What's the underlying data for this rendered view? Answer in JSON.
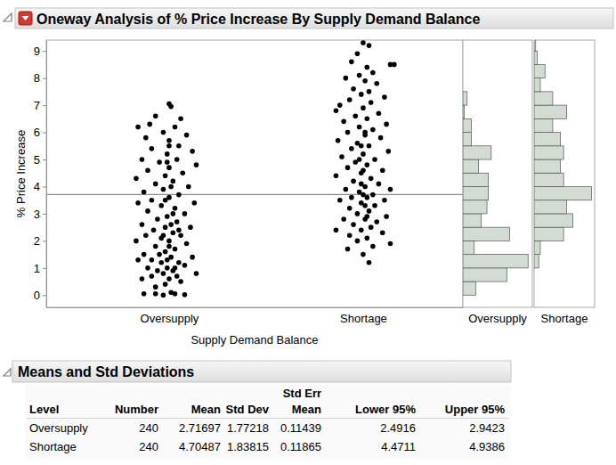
{
  "chart_data": [
    {
      "type": "scatter",
      "title": "Oneway Analysis of % Price Increase By Supply Demand Balance",
      "xlabel": "Supply Demand Balance",
      "ylabel": "% Price Increase",
      "xlim": [
        0.367,
        2.514
      ],
      "xticks": [
        {
          "value": 1,
          "label": "Oversupply"
        },
        {
          "value": 2,
          "label": "Shortage"
        }
      ],
      "ylim": [
        -0.45,
        9.4
      ],
      "yticks": [
        0,
        1,
        2,
        3,
        4,
        5,
        6,
        7,
        8,
        9
      ],
      "mean_line": 3.71,
      "series": [
        {
          "color": "#000000",
          "marker": "circle",
          "x": [
            1.0,
            1.01,
            0.93,
            1.06,
            0.84,
            0.9,
            1.03,
            0.97,
            1.09,
            0.88,
            1.0,
            1.05,
            0.91,
            1.12,
            0.99,
            0.86,
            1.04,
            0.95,
            1.14,
            1.0,
            0.89,
            1.07,
            0.98,
            0.83,
            1.02,
            0.93,
            1.1,
            0.97,
            0.87,
            1.05,
            1.0,
            0.91,
            1.13,
            0.96,
            0.84,
            1.03,
            0.89,
            1.08,
            0.99,
            0.94,
            1.04,
            0.86,
            1.11,
            0.98,
            0.92,
            1.02,
            0.88,
            1.06,
            0.96,
            1.0,
            0.83,
            1.09,
            0.93,
            1.03,
            0.98,
            0.87,
            1.12,
            1.01,
            0.91,
            0.84,
            1.05,
            0.96,
            1.08,
            0.99,
            0.89,
            1.02,
            0.94,
            1.14,
            0.97,
            1.04,
            0.91,
            1.0,
            0.86,
            1.06,
            0.98,
            0.93,
            0.87,
            0.93,
            0.97,
            1.03,
            1.08,
            1.01,
            1.0,
            0.95,
            1.05,
            1.01,
            0.99,
            1.03,
            0.97,
            1.02,
            0.98,
            1.01,
            0.99,
            1.0
          ],
          "values": [
            7.05,
            6.95,
            6.6,
            6.5,
            6.2,
            6.3,
            6.2,
            6.0,
            5.9,
            5.8,
            5.7,
            5.5,
            5.4,
            5.3,
            5.2,
            5.0,
            5.0,
            4.9,
            4.8,
            4.7,
            4.6,
            4.5,
            4.4,
            4.3,
            4.2,
            4.1,
            4.0,
            3.9,
            3.8,
            3.7,
            3.6,
            3.5,
            3.4,
            3.3,
            3.4,
            3.2,
            3.1,
            3.0,
            2.9,
            2.8,
            2.7,
            2.6,
            2.5,
            2.5,
            2.4,
            2.3,
            2.2,
            2.2,
            2.1,
            2.0,
            2.0,
            1.9,
            1.8,
            1.7,
            1.6,
            1.5,
            1.4,
            1.4,
            1.3,
            1.3,
            1.2,
            1.2,
            1.1,
            1.0,
            1.0,
            0.9,
            0.9,
            0.8,
            0.8,
            0.7,
            0.7,
            0.6,
            0.6,
            0.5,
            0.4,
            0.3,
            0.05,
            0.05,
            0.0,
            0.05,
            0.02,
            0.1,
            1.8,
            1.5,
            2.4,
            2.6,
            1.3,
            1.0,
            2.2,
            3.0,
            3.5,
            4.0,
            4.9,
            5.5
          ]
        },
        {
          "color": "#000000",
          "marker": "circle",
          "x": [
            2.0,
            2.03,
            1.97,
            2.14,
            2.16,
            1.94,
            2.02,
            2.05,
            1.98,
            1.91,
            2.01,
            2.07,
            1.95,
            2.03,
            1.99,
            2.11,
            1.93,
            2.04,
            1.88,
            2.0,
            1.86,
            2.08,
            1.96,
            2.02,
            1.9,
            2.12,
            1.98,
            2.05,
            1.92,
            2.01,
            2.09,
            1.87,
            1.97,
            2.03,
            1.94,
            2.13,
            2.0,
            1.89,
            2.06,
            1.96,
            2.02,
            1.92,
            2.1,
            1.99,
            1.86,
            2.04,
            1.95,
            2.08,
            2.01,
            1.91,
            2.14,
            1.98,
            2.05,
            1.94,
            2.02,
            1.88,
            2.11,
            1.99,
            2.06,
            1.93,
            2.03,
            1.97,
            2.12,
            1.9,
            2.01,
            2.07,
            1.95,
            2.04,
            1.99,
            1.86,
            2.1,
            1.93,
            2.02,
            1.97,
            2.14,
            2.05,
            1.92,
            2.0,
            2.03,
            2.0,
            1.99,
            2.01,
            2.0,
            1.98,
            2.02,
            2.01,
            1.99
          ],
          "values": [
            9.3,
            9.2,
            8.9,
            8.5,
            8.5,
            8.6,
            8.4,
            8.2,
            8.1,
            8.0,
            7.9,
            7.8,
            7.6,
            7.5,
            7.4,
            7.3,
            7.2,
            7.1,
            7.0,
            6.9,
            6.8,
            6.7,
            6.6,
            6.5,
            6.4,
            6.3,
            6.2,
            6.1,
            6.0,
            5.9,
            5.8,
            5.7,
            5.6,
            5.5,
            5.4,
            5.3,
            5.2,
            5.1,
            5.0,
            4.9,
            4.8,
            4.7,
            4.6,
            4.5,
            4.4,
            4.3,
            4.2,
            4.1,
            4.0,
            3.9,
            3.9,
            3.8,
            3.7,
            3.6,
            3.6,
            3.5,
            3.5,
            3.4,
            3.3,
            3.2,
            3.1,
            3.0,
            2.9,
            2.8,
            2.8,
            2.7,
            2.6,
            2.5,
            2.4,
            2.4,
            2.3,
            2.2,
            2.1,
            2.0,
            1.9,
            1.8,
            1.7,
            1.5,
            1.2,
            3.7,
            4.1,
            3.3,
            4.6,
            5.0,
            2.9,
            6.0,
            5.5
          ]
        }
      ]
    },
    {
      "type": "histogram",
      "orientation": "horizontal",
      "tick_labels": false,
      "xlabel": "Oversupply",
      "color": "#d3dcd3",
      "xlim": [
        0,
        49
      ],
      "ylim": [
        -0.45,
        9.4
      ],
      "bins": [
        0,
        0.5,
        1,
        1.5,
        2,
        2.5,
        3,
        3.5,
        4,
        4.5,
        5,
        5.5,
        6,
        6.5,
        7,
        7.5
      ],
      "values": [
        9,
        31,
        46,
        8,
        33,
        13,
        17,
        18,
        18,
        11,
        20,
        6,
        6,
        1,
        3
      ]
    },
    {
      "type": "histogram",
      "orientation": "horizontal",
      "tick_labels": false,
      "xlabel": "Shortage",
      "color": "#d3dcd3",
      "xlim": [
        0,
        39
      ],
      "ylim": [
        -0.45,
        9.4
      ],
      "bins": [
        1,
        1.5,
        2,
        2.5,
        3,
        3.5,
        4,
        4.5,
        5,
        5.5,
        6,
        6.5,
        7,
        7.5,
        8,
        8.5,
        9,
        9.5
      ],
      "values": [
        3,
        4,
        19,
        25,
        21,
        37,
        19,
        17,
        19,
        17,
        12,
        21,
        12,
        4,
        7,
        2,
        1
      ]
    }
  ],
  "table": {
    "title": "Means and Std Deviations",
    "columns": [
      "Level",
      "Number",
      "Mean",
      "Std Dev",
      [
        "Std Err",
        "Mean"
      ],
      "Lower 95%",
      "Upper 95%"
    ],
    "rows": [
      [
        "Oversupply",
        240,
        2.71697,
        1.77218,
        0.11439,
        2.4916,
        2.9423
      ],
      [
        "Shortage",
        240,
        4.70487,
        1.83815,
        0.11865,
        4.4711,
        4.9386
      ]
    ]
  }
}
